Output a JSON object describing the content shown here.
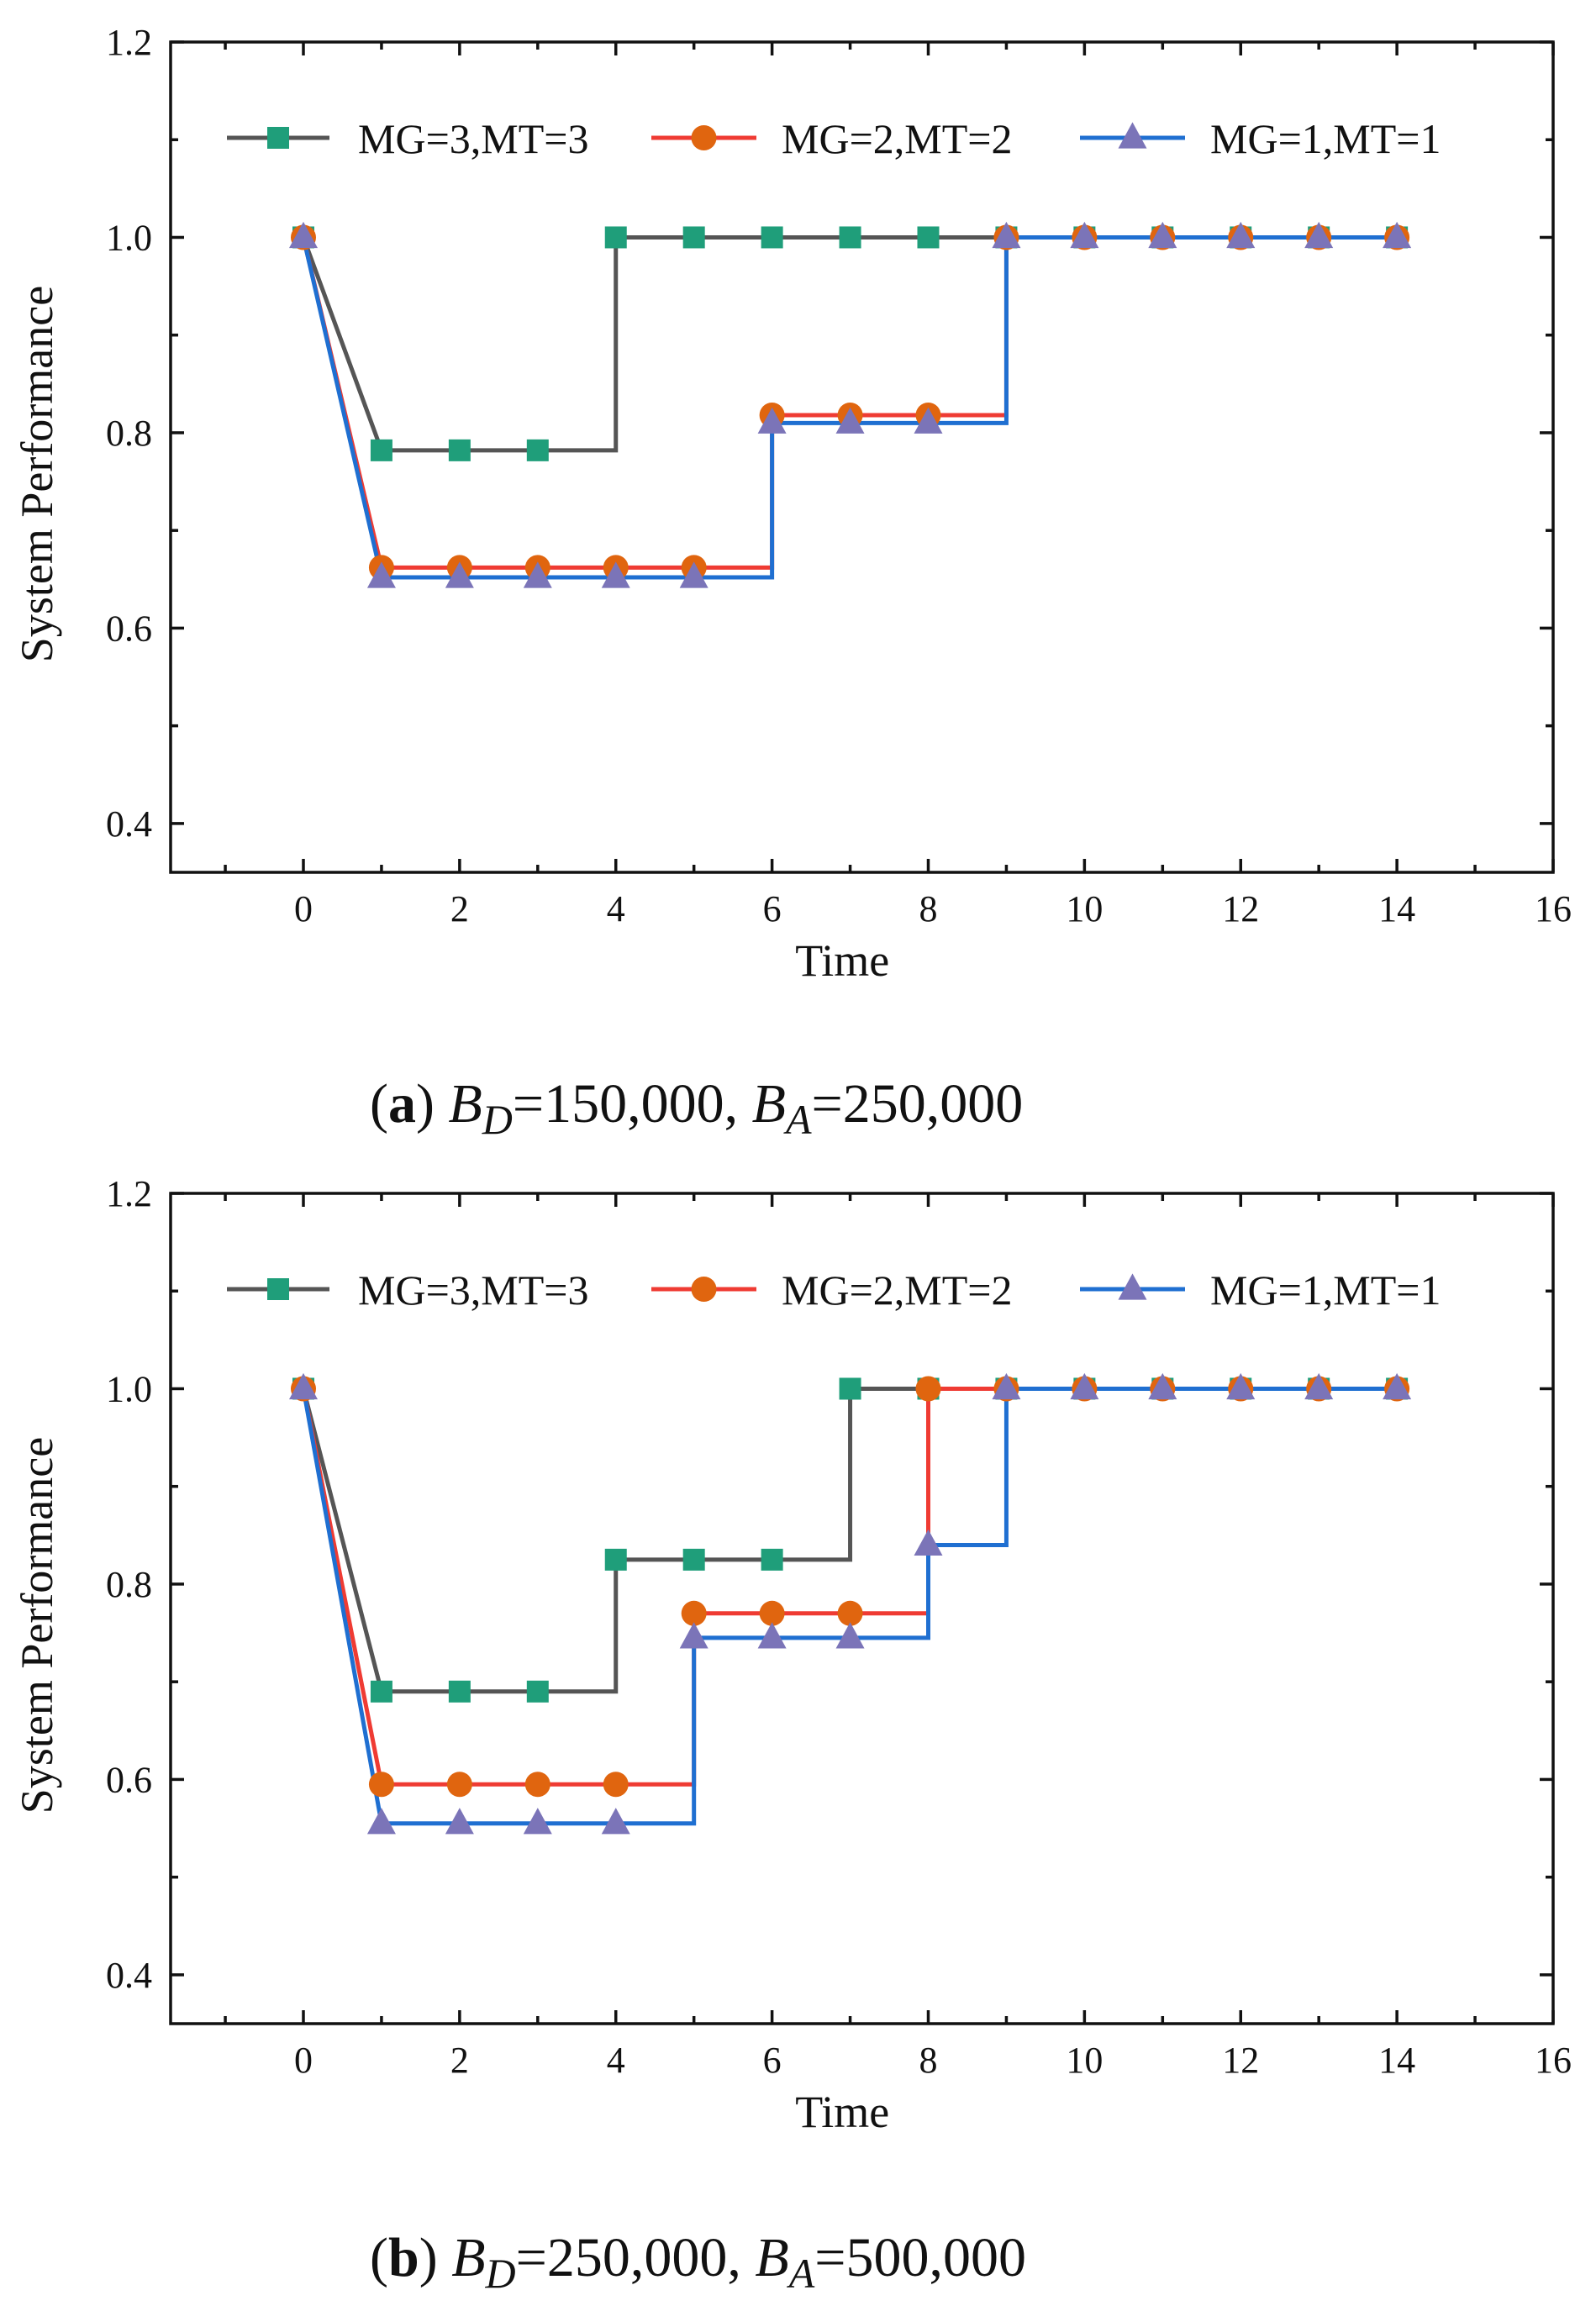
{
  "figure": {
    "panels": [
      {
        "caption": {
          "label": "(a)",
          "bd_sub": "D",
          "bd_value": "=150,000,",
          "ba_sub": "A",
          "ba_value": "=250,000",
          "letter": "B"
        }
      },
      {
        "caption": {
          "label": "(b)",
          "bd_sub": "D",
          "bd_value": "=250,000,",
          "ba_sub": "A",
          "ba_value": "=500,000",
          "letter": "B"
        }
      }
    ]
  },
  "colors": {
    "s1_line": "#555555",
    "s1_marker": "#1f9e7a",
    "s2_line": "#ef3b33",
    "s2_marker": "#e0650f",
    "s3_line": "#1f6fd1",
    "s3_marker": "#7b74b8"
  },
  "chart_data": [
    {
      "type": "line",
      "step": "post",
      "xlabel": "Time",
      "ylabel": "System Performance",
      "xlim": [
        -1.7,
        16
      ],
      "ylim": [
        0.35,
        1.2
      ],
      "xticks": [
        0,
        2,
        4,
        6,
        8,
        10,
        12,
        14,
        16
      ],
      "yticks": [
        0.4,
        0.6,
        0.8,
        1.0,
        1.2
      ],
      "ytick_labels": [
        "0.4",
        "0.6",
        "0.8",
        "1.0",
        "1.2"
      ],
      "legend": "top",
      "series": [
        {
          "name": "MG=3,MT=3",
          "marker": "square",
          "x": [
            0,
            1,
            2,
            3,
            4,
            5,
            6,
            7,
            8,
            9,
            10,
            11,
            12,
            13,
            14
          ],
          "values": [
            1.0,
            0.782,
            0.782,
            0.782,
            1.0,
            1.0,
            1.0,
            1.0,
            1.0,
            1.0,
            1.0,
            1.0,
            1.0,
            1.0,
            1.0
          ]
        },
        {
          "name": "MG=2,MT=2",
          "marker": "circle",
          "x": [
            0,
            1,
            2,
            3,
            4,
            5,
            6,
            7,
            8,
            9,
            10,
            11,
            12,
            13,
            14
          ],
          "values": [
            1.0,
            0.662,
            0.662,
            0.662,
            0.662,
            0.662,
            0.818,
            0.818,
            0.818,
            1.0,
            1.0,
            1.0,
            1.0,
            1.0,
            1.0
          ]
        },
        {
          "name": "MG=1,MT=1",
          "marker": "triangle",
          "x": [
            0,
            1,
            2,
            3,
            4,
            5,
            6,
            7,
            8,
            9,
            10,
            11,
            12,
            13,
            14
          ],
          "values": [
            1.0,
            0.652,
            0.652,
            0.652,
            0.652,
            0.652,
            0.81,
            0.81,
            0.81,
            1.0,
            1.0,
            1.0,
            1.0,
            1.0,
            1.0
          ]
        }
      ]
    },
    {
      "type": "line",
      "step": "post",
      "xlabel": "Time",
      "ylabel": "System Performance",
      "xlim": [
        -1.7,
        16
      ],
      "ylim": [
        0.35,
        1.2
      ],
      "xticks": [
        0,
        2,
        4,
        6,
        8,
        10,
        12,
        14,
        16
      ],
      "yticks": [
        0.4,
        0.6,
        0.8,
        1.0,
        1.2
      ],
      "ytick_labels": [
        "0.4",
        "0.6",
        "0.8",
        "1.0",
        "1.2"
      ],
      "legend": "top",
      "series": [
        {
          "name": "MG=3,MT=3",
          "marker": "square",
          "x": [
            0,
            1,
            2,
            3,
            4,
            5,
            6,
            7,
            8,
            9,
            10,
            11,
            12,
            13,
            14
          ],
          "values": [
            1.0,
            0.69,
            0.69,
            0.69,
            0.825,
            0.825,
            0.825,
            1.0,
            1.0,
            1.0,
            1.0,
            1.0,
            1.0,
            1.0,
            1.0
          ]
        },
        {
          "name": "MG=2,MT=2",
          "marker": "circle",
          "x": [
            0,
            1,
            2,
            3,
            4,
            5,
            6,
            7,
            8,
            9,
            10,
            11,
            12,
            13,
            14
          ],
          "values": [
            1.0,
            0.595,
            0.595,
            0.595,
            0.595,
            0.77,
            0.77,
            0.77,
            1.0,
            1.0,
            1.0,
            1.0,
            1.0,
            1.0,
            1.0
          ]
        },
        {
          "name": "MG=1,MT=1",
          "marker": "triangle",
          "x": [
            0,
            1,
            2,
            3,
            4,
            5,
            6,
            7,
            8,
            9,
            10,
            11,
            12,
            13,
            14
          ],
          "values": [
            1.0,
            0.555,
            0.555,
            0.555,
            0.555,
            0.745,
            0.745,
            0.745,
            0.84,
            1.0,
            1.0,
            1.0,
            1.0,
            1.0,
            1.0
          ]
        }
      ]
    }
  ]
}
